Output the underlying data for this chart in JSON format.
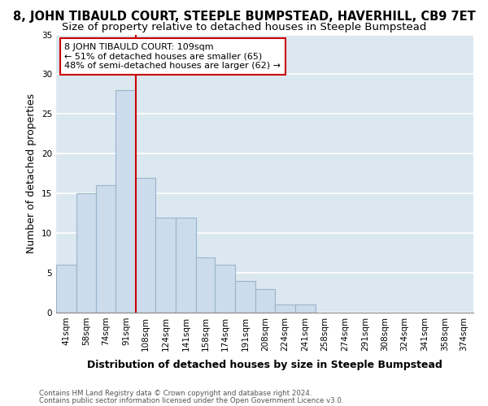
{
  "title": "8, JOHN TIBAULD COURT, STEEPLE BUMPSTEAD, HAVERHILL, CB9 7ET",
  "subtitle": "Size of property relative to detached houses in Steeple Bumpstead",
  "xlabel": "Distribution of detached houses by size in Steeple Bumpstead",
  "ylabel": "Number of detached properties",
  "bin_labels": [
    "41sqm",
    "58sqm",
    "74sqm",
    "91sqm",
    "108sqm",
    "124sqm",
    "141sqm",
    "158sqm",
    "174sqm",
    "191sqm",
    "208sqm",
    "224sqm",
    "241sqm",
    "258sqm",
    "274sqm",
    "291sqm",
    "308sqm",
    "324sqm",
    "341sqm",
    "358sqm",
    "374sqm"
  ],
  "bin_edges": [
    41,
    58,
    74,
    91,
    108,
    124,
    141,
    158,
    174,
    191,
    208,
    224,
    241,
    258,
    274,
    291,
    308,
    324,
    341,
    358,
    374,
    390
  ],
  "bar_values": [
    6,
    15,
    16,
    28,
    17,
    12,
    12,
    7,
    6,
    4,
    3,
    1,
    1,
    0,
    0,
    0,
    0,
    0,
    0,
    0,
    0
  ],
  "bar_color": "#ccdcec",
  "bar_edge_color": "#9ab4cc",
  "vline_x": 108,
  "vline_color": "#cc0000",
  "annotation_line1": "8 JOHN TIBAULD COURT: 109sqm",
  "annotation_line2": "← 51% of detached houses are smaller (65)",
  "annotation_line3": "48% of semi-detached houses are larger (62) →",
  "annotation_box_color": "#ffffff",
  "annotation_box_edge": "#cc0000",
  "ylim": [
    0,
    35
  ],
  "yticks": [
    0,
    5,
    10,
    15,
    20,
    25,
    30,
    35
  ],
  "footer_line1": "Contains HM Land Registry data © Crown copyright and database right 2024.",
  "footer_line2": "Contains public sector information licensed under the Open Government Licence v3.0.",
  "plot_bg_color": "#dce8f0",
  "fig_bg_color": "#ffffff",
  "grid_color": "#ffffff",
  "title_fontsize": 10.5,
  "subtitle_fontsize": 9.5,
  "axis_label_fontsize": 9,
  "tick_fontsize": 7.5,
  "annotation_fontsize": 8
}
